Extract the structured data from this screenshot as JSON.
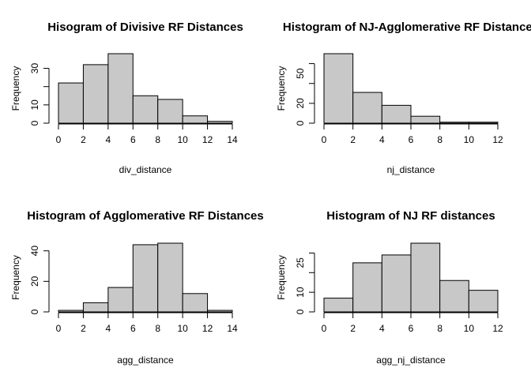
{
  "chart_data": [
    {
      "type": "bar",
      "title": "Hisogram of Divisive RF Distances",
      "xlabel": "div_distance",
      "ylabel": "Frequency",
      "bin_edges": [
        0,
        2,
        4,
        6,
        8,
        10,
        12,
        14
      ],
      "values": [
        22,
        32,
        38,
        15,
        13,
        4,
        1
      ],
      "xticks": [
        0,
        2,
        4,
        6,
        8,
        10,
        12,
        14
      ],
      "yticks": [
        0,
        10,
        30
      ],
      "xlim": [
        0,
        14
      ],
      "ylim": [
        0,
        38
      ],
      "grid": false
    },
    {
      "type": "bar",
      "title": "Histogram of NJ-Agglomerative RF Distances",
      "xlabel": "nj_distance",
      "ylabel": "Frequency",
      "bin_edges": [
        0,
        2,
        4,
        6,
        8,
        10,
        12
      ],
      "values": [
        70,
        31,
        18,
        7,
        1,
        1
      ],
      "xticks": [
        0,
        2,
        4,
        6,
        8,
        10,
        12
      ],
      "yticks": [
        0,
        20,
        50
      ],
      "xlim": [
        0,
        12
      ],
      "ylim": [
        0,
        70
      ],
      "grid": false
    },
    {
      "type": "bar",
      "title": "Histogram of Agglomerative RF Distances",
      "xlabel": "agg_distance",
      "ylabel": "Frequency",
      "bin_edges": [
        0,
        2,
        4,
        6,
        8,
        10,
        12,
        14
      ],
      "values": [
        1,
        6,
        16,
        44,
        45,
        12,
        1
      ],
      "xticks": [
        0,
        2,
        4,
        6,
        8,
        10,
        12,
        14
      ],
      "yticks": [
        0,
        20,
        40
      ],
      "xlim": [
        0,
        14
      ],
      "ylim": [
        0,
        45
      ],
      "grid": false
    },
    {
      "type": "bar",
      "title": "Histogram of NJ RF distances",
      "xlabel": "agg_nj_distance",
      "ylabel": "Frequency",
      "bin_edges": [
        0,
        2,
        4,
        6,
        8,
        10,
        12
      ],
      "values": [
        7,
        25,
        29,
        35,
        16,
        11
      ],
      "xticks": [
        0,
        2,
        4,
        6,
        8,
        10,
        12
      ],
      "yticks": [
        0,
        10,
        25
      ],
      "xlim": [
        0,
        12
      ],
      "ylim": [
        0,
        35
      ],
      "grid": false
    }
  ],
  "colors": {
    "bar_fill": "#c8c8c8",
    "bar_stroke": "#000000"
  }
}
